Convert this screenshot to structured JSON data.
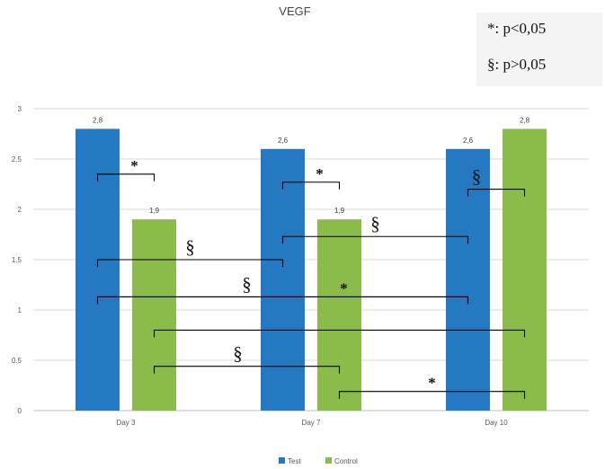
{
  "chart_data": {
    "type": "bar",
    "title": "VEGF",
    "categories": [
      "Day 3",
      "Day 7",
      "Day 10"
    ],
    "series": [
      {
        "name": "Test",
        "values": [
          2.8,
          2.6,
          2.6
        ],
        "labels": [
          "2,8",
          "2,6",
          "2,6"
        ]
      },
      {
        "name": "Control",
        "values": [
          1.9,
          1.9,
          2.8
        ],
        "labels": [
          "1,9",
          "1,9",
          "2,8"
        ]
      }
    ],
    "ylim": [
      0,
      3
    ],
    "yticks": [
      "0",
      "0.5",
      "1",
      "1.5",
      "2",
      "2.5",
      "3"
    ],
    "grid": true,
    "legend_position": "bottom",
    "significance_key": [
      "*: p<0,05",
      "§: p>0,05"
    ],
    "comparisons": [
      {
        "from": "Test/Day 3",
        "to": "Control/Day 3",
        "mark": "*"
      },
      {
        "from": "Test/Day 7",
        "to": "Control/Day 7",
        "mark": "*"
      },
      {
        "from": "Test/Day 10",
        "to": "Control/Day 10",
        "mark": "§"
      },
      {
        "from": "Test/Day 7",
        "to": "Test/Day 10",
        "mark": "§"
      },
      {
        "from": "Test/Day 3",
        "to": "Test/Day 7",
        "mark": "§"
      },
      {
        "from": "Test/Day 3",
        "to": "Test/Day 10",
        "mark": "§"
      },
      {
        "from": "Test/Day 3",
        "to": "Test/Day 10",
        "mark": "*"
      },
      {
        "from": "Control/Day 3",
        "to": "Control/Day 10",
        "mark": ""
      },
      {
        "from": "Control/Day 3",
        "to": "Control/Day 7",
        "mark": "§"
      },
      {
        "from": "Control/Day 7",
        "to": "Control/Day 10",
        "mark": "*"
      }
    ]
  },
  "colors": {
    "test": "#2479c2",
    "control": "#8bbb4b",
    "grid": "#d9d9d9",
    "axis": "#bfbfbf"
  }
}
